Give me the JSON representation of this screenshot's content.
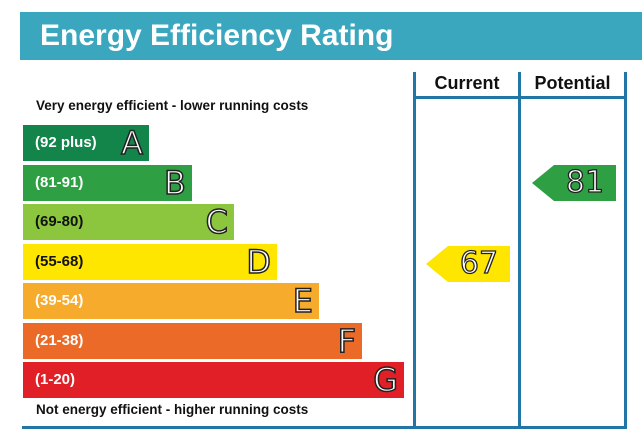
{
  "title": "Energy Efficiency Rating",
  "columns": {
    "current": "Current",
    "potential": "Potential"
  },
  "top_caption": "Very energy efficient - lower running costs",
  "bottom_caption": "Not energy efficient - higher running costs",
  "chart_data": {
    "type": "bar",
    "categories": [
      "A",
      "B",
      "C",
      "D",
      "E",
      "F",
      "G"
    ],
    "bands": [
      {
        "letter": "A",
        "range": "(92 plus)",
        "color": "#14854a"
      },
      {
        "letter": "B",
        "range": "(81-91)",
        "color": "#2ea043"
      },
      {
        "letter": "C",
        "range": "(69-80)",
        "color": "#8cc63f"
      },
      {
        "letter": "D",
        "range": "(55-68)",
        "color": "#ffe600"
      },
      {
        "letter": "E",
        "range": "(39-54)",
        "color": "#f6ab2c"
      },
      {
        "letter": "F",
        "range": "(21-38)",
        "color": "#eb6a27"
      },
      {
        "letter": "G",
        "range": "(1-20)",
        "color": "#e01f26"
      }
    ],
    "current": {
      "value": 67,
      "band": "D",
      "color": "#ffe600"
    },
    "potential": {
      "value": 81,
      "band": "B",
      "color": "#2ea043"
    }
  }
}
